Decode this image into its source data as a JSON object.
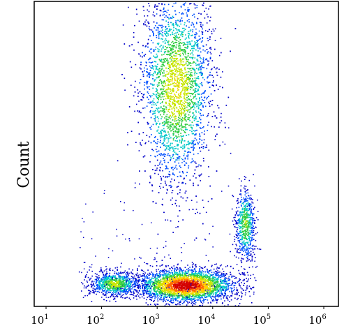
{
  "chart_data": {
    "type": "scatter",
    "subtype": "density-dot-plot",
    "title": "",
    "xlabel": "",
    "ylabel": "Count",
    "x_scale": "log",
    "xlim": [
      10,
      1000000
    ],
    "x_ticks": [
      {
        "base": "10",
        "exp": "1",
        "value": 10
      },
      {
        "base": "10",
        "exp": "2",
        "value": 100
      },
      {
        "base": "10",
        "exp": "3",
        "value": 1000
      },
      {
        "base": "10",
        "exp": "4",
        "value": 10000
      },
      {
        "base": "10",
        "exp": "5",
        "value": 100000
      },
      {
        "base": "10",
        "exp": "6",
        "value": 1000000
      }
    ],
    "ylim": [
      0,
      100
    ],
    "y_ticks_shown": false,
    "grid": false,
    "legend": "none",
    "colormap": [
      "#0000c8",
      "#0050ff",
      "#00c8c8",
      "#2ecc40",
      "#c8e600",
      "#ffd000",
      "#ff6a00",
      "#d40000"
    ],
    "populations": [
      {
        "x_center": 2200,
        "y_center": 72,
        "x_spread_decades": 0.32,
        "y_spread": 16,
        "n": 4200,
        "peak_density": 0.62
      },
      {
        "x_center": 3200,
        "y_center": 7,
        "x_spread_decades": 0.42,
        "y_spread": 2.6,
        "n": 3600,
        "peak_density": 1.0
      },
      {
        "x_center": 170,
        "y_center": 7.5,
        "x_spread_decades": 0.22,
        "y_spread": 2.0,
        "n": 900,
        "peak_density": 0.55
      },
      {
        "x_center": 38000,
        "y_center": 27,
        "x_spread_decades": 0.09,
        "y_spread": 6,
        "n": 650,
        "peak_density": 0.5
      }
    ]
  }
}
